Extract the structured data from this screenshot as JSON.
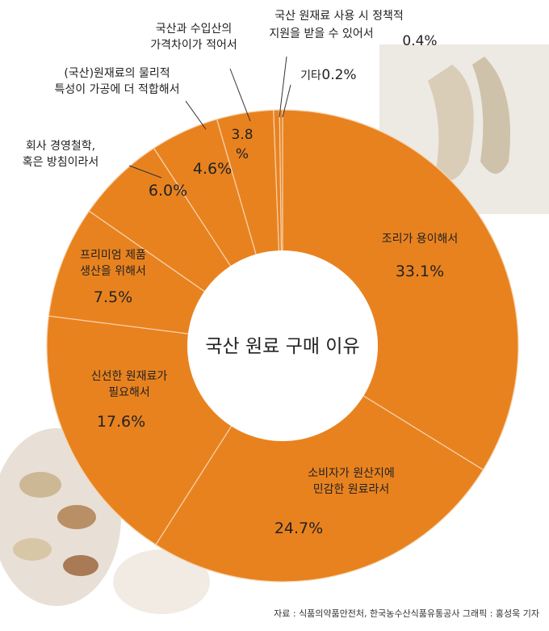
{
  "chart_data": {
    "type": "pie",
    "title": "국산 원료 구매 이유",
    "slices": [
      {
        "label": "조리가 용이해서",
        "value": 33.1,
        "value_label": "33.1%"
      },
      {
        "label": "소비자가 원산지에 민감한 원료라서",
        "value": 24.7,
        "value_label": "24.7%"
      },
      {
        "label": "신선한 원재료가 필요해서",
        "value": 17.6,
        "value_label": "17.6%"
      },
      {
        "label": "프리미엄 제품 생산을 위해서",
        "value": 7.5,
        "value_label": "7.5%"
      },
      {
        "label": "회사 경영철학, 혹은 방침이라서",
        "value": 6.0,
        "value_label": "6.0%"
      },
      {
        "label": "(국산)원재료의 물리적 특성이 가공에 더 적합해서",
        "value": 4.6,
        "value_label": "4.6%"
      },
      {
        "label": "국산과 수입산의 가격차이가 적어서",
        "value": 3.8,
        "value_label": "3.8 %"
      },
      {
        "label": "국산 원재료 사용 시 정책적 지원을 받을 수 있어서",
        "value": 0.4,
        "value_label": "0.4%"
      },
      {
        "label": "기타",
        "value": 0.2,
        "value_label": "0.2%"
      }
    ],
    "colors": {
      "slice": "#e8821f",
      "separator": "#f6d3ae",
      "text": "#222222"
    }
  },
  "source": "자료 : 식품의약품안전처, 한국농수산식품유통공사 그래픽 : 홍성욱 기자"
}
